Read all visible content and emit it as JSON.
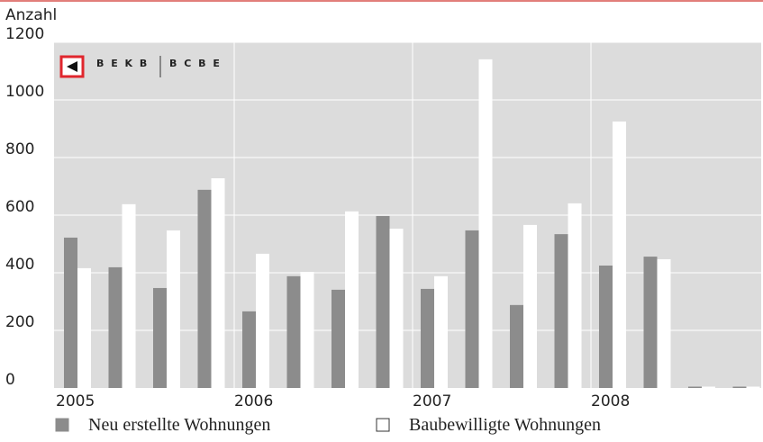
{
  "chart_data": {
    "type": "bar",
    "y_label": "Anzahl",
    "logo": {
      "left": "B E K B",
      "right": "B C B E"
    },
    "categories": [
      "2005",
      null,
      null,
      null,
      "2006",
      null,
      null,
      null,
      "2007",
      null,
      null,
      null,
      "2008",
      null,
      null,
      null
    ],
    "series": [
      {
        "name": "Neu erstellte Wohnungen",
        "color": "#8c8c8c",
        "values": [
          522,
          419,
          347,
          688,
          266,
          388,
          341,
          597,
          344,
          547,
          288,
          534,
          425,
          456,
          0,
          0
        ]
      },
      {
        "name": "Baubewilligte Wohnungen",
        "color": "#ffffff",
        "values": [
          416,
          638,
          547,
          728,
          466,
          403,
          613,
          553,
          388,
          1141,
          566,
          641,
          925,
          447,
          0,
          0
        ]
      }
    ],
    "ylim": [
      0,
      1200
    ],
    "yticks": [
      0,
      200,
      400,
      600,
      800,
      1000,
      1200
    ],
    "grid": true
  }
}
